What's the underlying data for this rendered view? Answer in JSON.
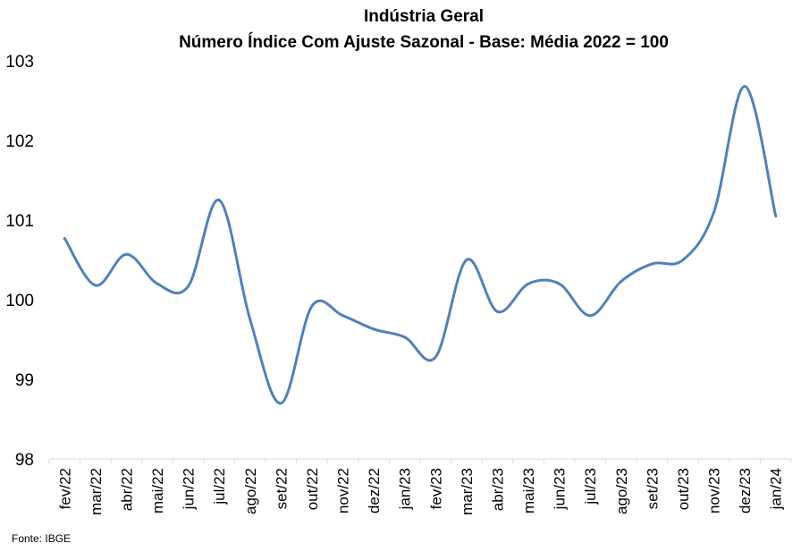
{
  "chart_data": {
    "type": "line",
    "title": "Indústria Geral",
    "subtitle": "Número Índice Com Ajuste Sazonal - Base: Média 2022 = 100",
    "source": "Fonte: IBGE",
    "xlabel": "",
    "ylabel": "",
    "ylim": [
      98,
      103
    ],
    "yticks": [
      "98",
      "99",
      "100",
      "101",
      "102",
      "103"
    ],
    "grid": false,
    "legend": "none",
    "categories": [
      "fev/22",
      "mar/22",
      "abr/22",
      "mai/22",
      "jun/22",
      "jul/22",
      "ago/22",
      "set/22",
      "out/22",
      "nov/22",
      "dez/22",
      "jan/23",
      "fev/23",
      "mar/23",
      "abr/23",
      "mai/23",
      "jun/23",
      "jul/23",
      "ago/23",
      "set/23",
      "out/23",
      "nov/23",
      "dez/23",
      "jan/24"
    ],
    "series": [
      {
        "values": [
          100.77,
          100.18,
          100.57,
          100.2,
          100.17,
          101.25,
          99.75,
          98.7,
          99.92,
          99.8,
          99.63,
          99.53,
          99.28,
          100.5,
          99.85,
          100.2,
          100.2,
          99.8,
          100.23,
          100.45,
          100.5,
          101.1,
          102.68,
          101.05
        ]
      }
    ],
    "line_color": "#4f81bd"
  }
}
